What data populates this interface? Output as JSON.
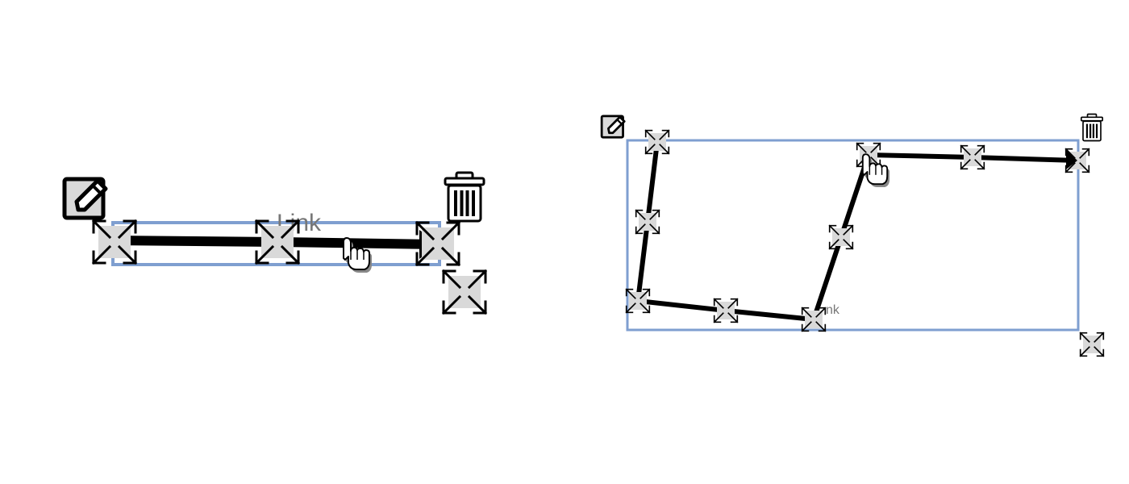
{
  "colors": {
    "background": "#ffffff",
    "selection_border": "#7f9fd0",
    "link_stroke": "#000000",
    "handle_fill": "#d9d9d9",
    "label_text": "#777777"
  },
  "left_panel": {
    "link_label": "Link",
    "icons": {
      "edit": "edit-icon",
      "delete": "trash-icon",
      "resize": "resize-icon",
      "cursor": "hand-pointer-icon",
      "handle": "move-handle-icon"
    }
  },
  "right_panel": {
    "link_label": "nk",
    "icons": {
      "edit": "edit-icon",
      "delete": "trash-icon",
      "resize": "resize-icon",
      "cursor": "hand-pointer-icon",
      "handle": "move-handle-icon"
    }
  }
}
